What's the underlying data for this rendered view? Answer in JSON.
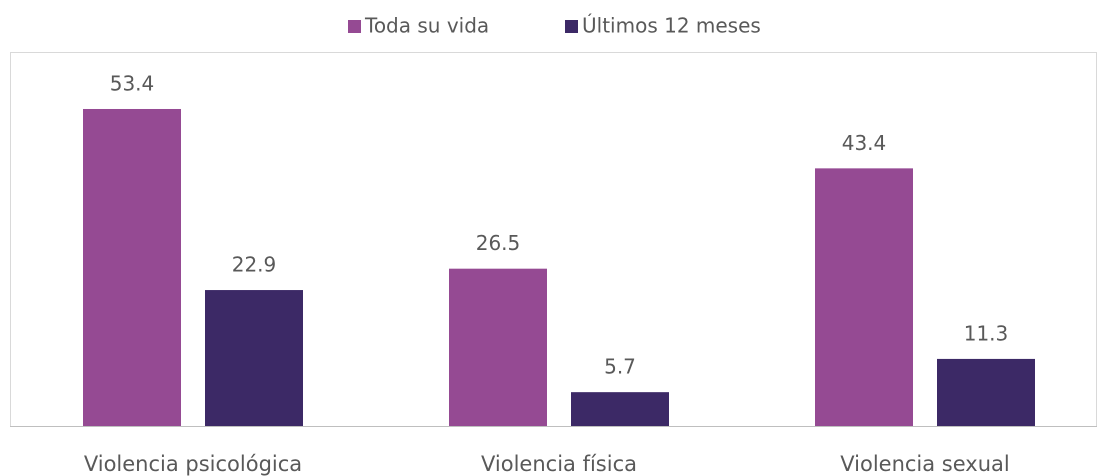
{
  "chart_data": {
    "type": "bar",
    "categories": [
      "Violencia psicológica",
      "Violencia física",
      "Violencia sexual"
    ],
    "series": [
      {
        "name": "Toda su vida",
        "color": "#954a93",
        "values": [
          53.4,
          26.5,
          43.4
        ]
      },
      {
        "name": "Últimos 12 meses",
        "color": "#3c2966",
        "values": [
          22.9,
          5.7,
          11.3
        ]
      }
    ],
    "ylim": [
      0,
      63
    ],
    "legend": "top",
    "grid": false
  }
}
